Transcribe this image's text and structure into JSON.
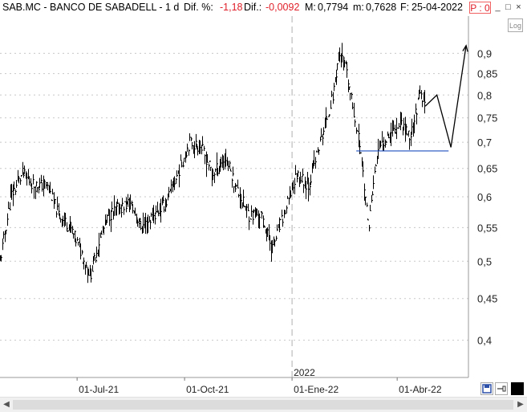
{
  "header": {
    "symbol": "SAB.MC - BANCO DE SABADELL -",
    "period": "1 d",
    "dif_pct_label": "Dif. %:",
    "dif_pct_value": "-1,18",
    "dif_label": "Dif.:",
    "dif_value": "-0,0092",
    "max_label": "M:",
    "max_value": "0,7794",
    "min_label": "m:",
    "min_value": "0,7628",
    "date_label": "F:",
    "date_value": "25-04-2022",
    "p_label": "P : 0"
  },
  "window_controls": {
    "minimize": "_",
    "restore": "□",
    "close": "×"
  },
  "log_button": "Log",
  "year_marker": "2022",
  "colors": {
    "price": "#000000",
    "support_line": "#1f4fbf",
    "negative": "#e0202a",
    "grid": "#c8c8c8"
  },
  "chart_data": {
    "type": "line",
    "subtype": "ohlc-bars",
    "y_scale": "log",
    "ylim": [
      0.36,
      1.0
    ],
    "yticks": [
      "0,9",
      "0,85",
      "0,8",
      "0,75",
      "0,7",
      "0,65",
      "0,6",
      "0,55",
      "0,5",
      "0,45",
      "0,4"
    ],
    "ytick_values": [
      0.9,
      0.85,
      0.8,
      0.75,
      0.7,
      0.65,
      0.6,
      0.55,
      0.5,
      0.45,
      0.4
    ],
    "x_range": [
      "2021-04-26",
      "2022-06-01"
    ],
    "xticks": [
      {
        "label": "01-Jul-21",
        "date": "2021-07-01"
      },
      {
        "label": "01-Oct-21",
        "date": "2021-10-01"
      },
      {
        "label": "01-Ene-22",
        "date": "2022-01-01"
      },
      {
        "label": "01-Abr-22",
        "date": "2022-04-01"
      }
    ],
    "year_separator": "2022-01-01",
    "series": [
      {
        "x": [
          "2021-04-26",
          "2021-05-05",
          "2021-05-15",
          "2021-05-25",
          "2021-06-05",
          "2021-06-15",
          "2021-06-25",
          "2021-07-05",
          "2021-07-12",
          "2021-07-20",
          "2021-07-28",
          "2021-08-05",
          "2021-08-15",
          "2021-08-25",
          "2021-09-05",
          "2021-09-15",
          "2021-09-25",
          "2021-10-05",
          "2021-10-15",
          "2021-10-25",
          "2021-11-05",
          "2021-11-15",
          "2021-11-25",
          "2021-12-05",
          "2021-12-15",
          "2021-12-25",
          "2022-01-05",
          "2022-01-15",
          "2022-01-25",
          "2022-02-05",
          "2022-02-10",
          "2022-02-15",
          "2022-02-22",
          "2022-03-01",
          "2022-03-07",
          "2022-03-15",
          "2022-03-25",
          "2022-04-05",
          "2022-04-12",
          "2022-04-20",
          "2022-04-25"
        ],
        "values": [
          0.5,
          0.6,
          0.64,
          0.62,
          0.62,
          0.57,
          0.55,
          0.51,
          0.48,
          0.53,
          0.57,
          0.58,
          0.59,
          0.55,
          0.57,
          0.59,
          0.64,
          0.7,
          0.69,
          0.64,
          0.67,
          0.61,
          0.57,
          0.57,
          0.52,
          0.57,
          0.64,
          0.62,
          0.7,
          0.8,
          0.9,
          0.87,
          0.77,
          0.68,
          0.55,
          0.68,
          0.72,
          0.74,
          0.71,
          0.8,
          0.775
        ]
      },
      {
        "role": "projection",
        "x": [
          "2022-04-25",
          "2022-05-05",
          "2022-05-17",
          "2022-05-30"
        ],
        "values": [
          0.775,
          0.8,
          0.69,
          0.92
        ]
      }
    ],
    "support_line": {
      "value": 0.683,
      "from": "2022-02-25",
      "to": "2022-05-15"
    },
    "grid": true
  }
}
